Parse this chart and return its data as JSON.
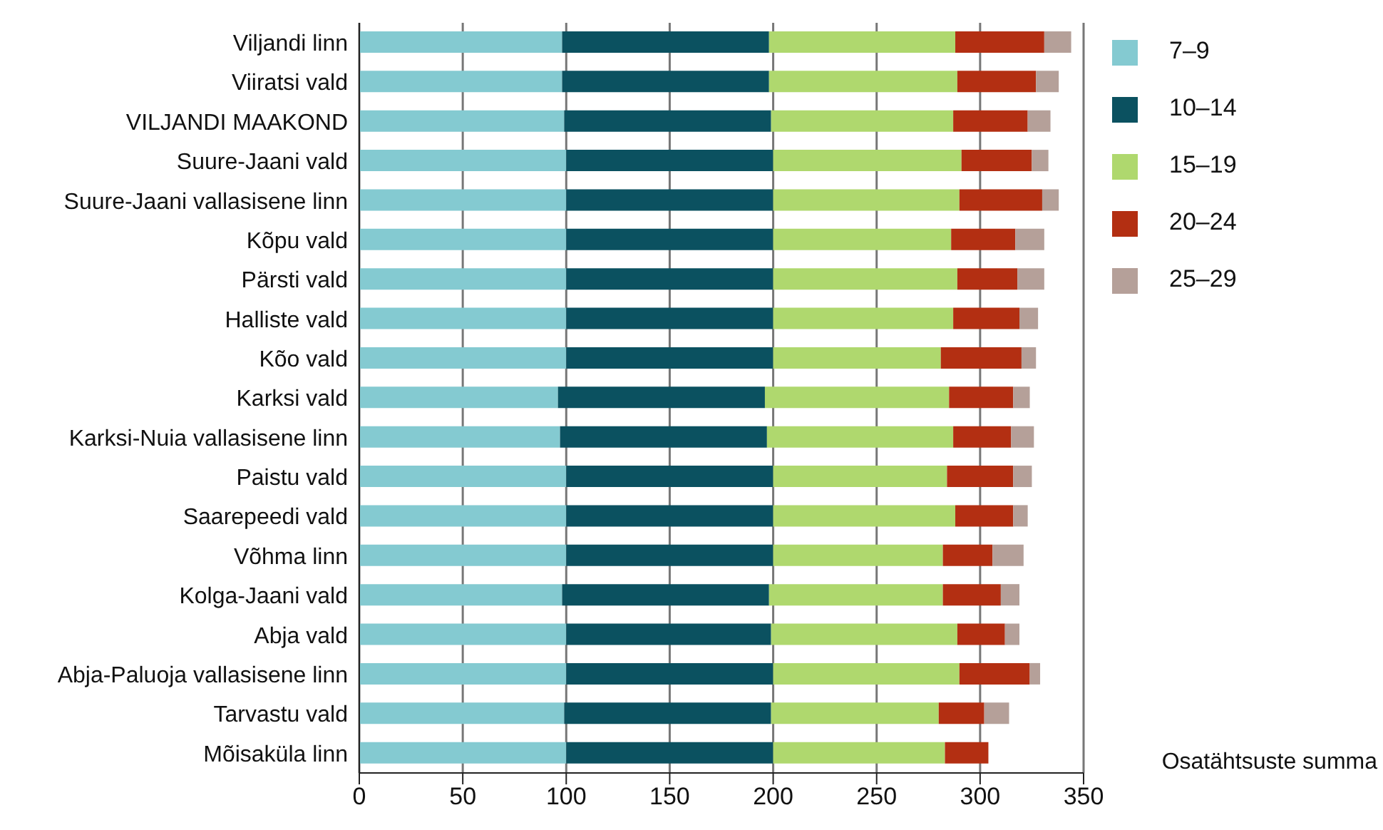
{
  "chart_data": {
    "type": "bar",
    "orientation": "horizontal",
    "stacked": true,
    "xlabel": "Osatähtsuste summa",
    "categories": [
      "Viljandi linn",
      "Viiratsi vald",
      "VILJANDI MAAKOND",
      "Suure-Jaani vald",
      "Suure-Jaani vallasisene linn",
      "Kõpu vald",
      "Pärsti vald",
      "Halliste vald",
      "Kõo vald",
      "Karksi vald",
      "Karksi-Nuia vallasisene linn",
      "Paistu vald",
      "Saarepeedi vald",
      "Võhma linn",
      "Kolga-Jaani vald",
      "Abja vald",
      "Abja-Paluoja vallasisene linn",
      "Tarvastu vald",
      "Mõisaküla linn"
    ],
    "series": [
      {
        "name": "7–9",
        "color": "#84cad1",
        "values": [
          98,
          98,
          99,
          100,
          100,
          100,
          100,
          100,
          100,
          96,
          97,
          100,
          100,
          100,
          98,
          100,
          100,
          99,
          100
        ]
      },
      {
        "name": "10–14",
        "color": "#0b5160",
        "values": [
          100,
          100,
          100,
          100,
          100,
          100,
          100,
          100,
          100,
          100,
          100,
          100,
          100,
          100,
          100,
          99,
          100,
          100,
          100
        ]
      },
      {
        "name": "15–19",
        "color": "#afd86e",
        "values": [
          90,
          91,
          88,
          91,
          90,
          86,
          89,
          87,
          81,
          89,
          90,
          84,
          88,
          82,
          84,
          90,
          90,
          81,
          83
        ]
      },
      {
        "name": "20–24",
        "color": "#b32f12",
        "values": [
          43,
          38,
          36,
          34,
          40,
          31,
          29,
          32,
          39,
          31,
          28,
          32,
          28,
          24,
          28,
          23,
          34,
          22,
          21
        ]
      },
      {
        "name": "25–29",
        "color": "#b5a099",
        "values": [
          13,
          11,
          11,
          8,
          8,
          14,
          13,
          9,
          7,
          8,
          11,
          9,
          7,
          15,
          9,
          7,
          5,
          12,
          0
        ]
      }
    ],
    "xlim": [
      0,
      350
    ],
    "xticks": [
      0,
      50,
      100,
      150,
      200,
      250,
      300,
      350
    ],
    "grid": "x",
    "legend": "right"
  }
}
